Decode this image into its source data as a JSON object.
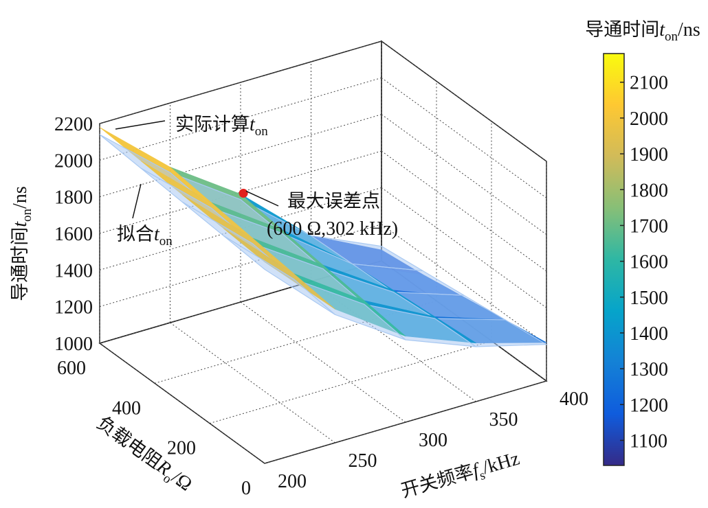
{
  "chart_data": {
    "type": "surface3d",
    "xlabel": {
      "text": "开关频率",
      "var": "f",
      "sub": "s",
      "unit": "/kHz"
    },
    "ylabel": {
      "text": "负载电阻",
      "var": "R",
      "sub": "o",
      "unit": "/Ω"
    },
    "zlabel": {
      "text": "导通时间",
      "var": "t",
      "sub": "on",
      "unit": "/ns"
    },
    "x": [
      200,
      250,
      300,
      350,
      400
    ],
    "y": [
      0,
      150,
      300,
      450,
      600
    ],
    "xlim": [
      200,
      400
    ],
    "ylim": [
      0,
      600
    ],
    "zlim": [
      1000,
      2200
    ],
    "xticks": [
      200,
      250,
      300,
      350,
      400
    ],
    "yticks": [
      0,
      200,
      400,
      600
    ],
    "zticks": [
      1000,
      1200,
      1400,
      1600,
      1800,
      2000,
      2200
    ],
    "grid": true,
    "series": [
      {
        "label": {
          "text": "实际计算",
          "var": "t",
          "sub": "on"
        },
        "style": "surface",
        "values": [
          [
            2100,
            1730,
            1470,
            1320,
            1210
          ],
          [
            2120,
            1760,
            1500,
            1300,
            1170
          ],
          [
            2140,
            1790,
            1530,
            1280,
            1130
          ],
          [
            2160,
            1820,
            1560,
            1260,
            1090
          ],
          [
            2180,
            1850,
            1590,
            1250,
            1060
          ]
        ]
      },
      {
        "label": {
          "text": "拟合",
          "var": "t",
          "sub": "on"
        },
        "style": "wireframe",
        "color": "#a9c9f2",
        "values": [
          [
            2060,
            1700,
            1450,
            1300,
            1200
          ],
          [
            2080,
            1730,
            1480,
            1290,
            1170
          ],
          [
            2100,
            1760,
            1510,
            1270,
            1140
          ],
          [
            2120,
            1790,
            1540,
            1260,
            1110
          ],
          [
            2140,
            1820,
            1560,
            1250,
            1080
          ]
        ]
      }
    ],
    "annotation": {
      "text": "最大误差点",
      "coords": "(600 Ω,302 kHz)",
      "x": 302,
      "y": 600,
      "z": 1590,
      "color": "#e0201c"
    },
    "colorbar": {
      "title": {
        "text": "导通时间",
        "var": "t",
        "sub": "on",
        "unit": "/ns"
      },
      "lim": [
        1030,
        2180
      ],
      "ticks": [
        1100,
        1200,
        1300,
        1400,
        1500,
        1600,
        1700,
        1800,
        1900,
        2000,
        2100
      ],
      "colormap": [
        "#352a87",
        "#0f5cdd",
        "#1481d6",
        "#06a4ca",
        "#2eb7a4",
        "#87bf77",
        "#d1bb59",
        "#fec832",
        "#f9fb0e"
      ]
    }
  }
}
